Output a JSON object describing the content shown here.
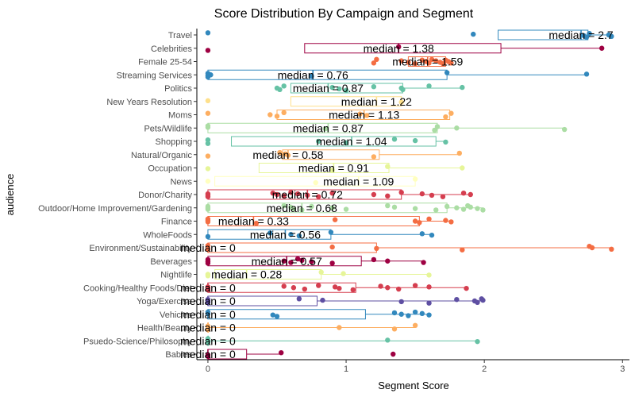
{
  "chart_data": {
    "type": "box",
    "title": "Score Distribution By Campaign and Segment",
    "xlabel": "Segment Score",
    "ylabel": "audience",
    "xlim": [
      -0.08,
      3.05
    ],
    "x_ticks": [
      0,
      1,
      2,
      3
    ],
    "grid": false,
    "legend": "none",
    "median_prefix": "median = ",
    "categories": [
      {
        "name": "Travel",
        "color": "#3288bd",
        "q1": 2.1,
        "median": 2.7,
        "q3": 2.75,
        "max": 2.92,
        "points": [
          0.0,
          1.92,
          2.72,
          2.74,
          2.76,
          2.9,
          2.92
        ],
        "median_label": "2.7"
      },
      {
        "name": "Celebrities",
        "color": "#9e0142",
        "q1": 0.7,
        "median": 1.38,
        "q3": 2.12,
        "max": 2.85,
        "points": [
          0.0,
          1.38,
          2.85
        ],
        "median_label": "1.38"
      },
      {
        "name": "Female 25-54",
        "color": "#f46d43",
        "q1": 1.45,
        "median": 1.59,
        "q3": 1.72,
        "max": 1.76,
        "points": [
          1.2,
          1.22,
          1.4,
          1.45,
          1.5,
          1.55,
          1.58,
          1.6,
          1.62,
          1.65,
          1.68,
          1.7,
          1.72,
          1.74,
          1.76
        ],
        "median_label": "1.59"
      },
      {
        "name": "Streaming Services",
        "color": "#3288bd",
        "q1": 0.0,
        "median": 0.76,
        "q3": 1.73,
        "max": 2.74,
        "points": [
          0.0,
          0.0,
          0.0,
          0.02,
          0.75,
          1.73,
          2.74
        ],
        "median_label": "0.76"
      },
      {
        "name": "Politics",
        "color": "#66c2a5",
        "q1": 0.6,
        "median": 0.87,
        "q3": 1.41,
        "max": 1.84,
        "points": [
          0.5,
          0.52,
          0.55,
          0.9,
          0.95,
          1.0,
          1.2,
          1.4,
          1.41,
          1.6,
          1.84
        ],
        "median_label": "0.87"
      },
      {
        "name": "New Years Resolution",
        "color": "#fee08b",
        "q1": 0.6,
        "median": 1.22,
        "q3": 1.4,
        "max": 1.4,
        "points": [
          0.0,
          1.4
        ],
        "median_label": "1.22"
      },
      {
        "name": "Moms",
        "color": "#fdae61",
        "q1": 0.5,
        "median": 1.13,
        "q3": 1.75,
        "max": 1.76,
        "points": [
          0.0,
          0.45,
          0.5,
          0.55,
          1.1,
          1.15,
          1.72,
          1.76
        ],
        "median_label": "1.13"
      },
      {
        "name": "Pets/Wildlife",
        "color": "#abdda4",
        "q1": 0.0,
        "median": 0.87,
        "q3": 1.66,
        "max": 2.58,
        "points": [
          0.0,
          0.0,
          0.85,
          1.64,
          1.66,
          1.8,
          2.58
        ],
        "median_label": "0.87"
      },
      {
        "name": "Shopping",
        "color": "#66c2a5",
        "q1": 0.17,
        "median": 1.04,
        "q3": 1.65,
        "max": 1.72,
        "points": [
          0.0,
          0.0,
          0.8,
          1.0,
          1.35,
          1.5,
          1.72
        ],
        "median_label": "1.04"
      },
      {
        "name": "Natural/Organic",
        "color": "#fdae61",
        "q1": 0.54,
        "median": 0.58,
        "q3": 1.24,
        "max": 1.82,
        "points": [
          0.0,
          0.52,
          0.56,
          0.58,
          1.2,
          1.82
        ],
        "median_label": "0.58"
      },
      {
        "name": "Occupation",
        "color": "#e6f598",
        "q1": 0.37,
        "median": 0.91,
        "q3": 1.31,
        "max": 1.84,
        "points": [
          0.0,
          0.9,
          1.3,
          1.84
        ],
        "median_label": "0.91"
      },
      {
        "name": "News",
        "color": "#ffffbf",
        "q1": 0.05,
        "median": 1.09,
        "q3": 1.5,
        "max": 1.5,
        "points": [
          0.0,
          0.78,
          1.5
        ],
        "median_label": "1.09"
      },
      {
        "name": "Donor/Charity",
        "color": "#d53e4f",
        "q1": 0.0,
        "median": 0.72,
        "q3": 1.4,
        "max": 1.9,
        "points": [
          0.0,
          0.0,
          0.0,
          0.47,
          0.5,
          0.55,
          0.6,
          0.65,
          0.72,
          0.8,
          0.9,
          1.2,
          1.3,
          1.4,
          1.55,
          1.62,
          1.7,
          1.85,
          1.9
        ],
        "median_label": "0.72"
      },
      {
        "name": "Outdoor/Home Improvement/Gardening",
        "color": "#abdda4",
        "q1": 0.0,
        "median": 0.68,
        "q3": 1.73,
        "max": 1.99,
        "points": [
          0.0,
          0.0,
          0.0,
          0.55,
          0.6,
          0.62,
          0.68,
          0.75,
          0.9,
          1.0,
          1.3,
          1.35,
          1.5,
          1.65,
          1.73,
          1.8,
          1.85,
          1.88,
          1.9,
          1.95,
          1.99
        ],
        "median_label": "0.68"
      },
      {
        "name": "Finance",
        "color": "#f46d43",
        "q1": 0.0,
        "median": 0.33,
        "q3": 1.53,
        "max": 1.76,
        "points": [
          0.0,
          0.0,
          0.0,
          0.35,
          0.92,
          1.5,
          1.53,
          1.6,
          1.72,
          1.76
        ],
        "median_label": "0.33"
      },
      {
        "name": "WholeFoods",
        "color": "#3288bd",
        "q1": 0.0,
        "median": 0.56,
        "q3": 0.89,
        "max": 1.62,
        "points": [
          0.0,
          0.45,
          0.6,
          0.66,
          0.89,
          1.55,
          1.62
        ],
        "median_label": "0.56"
      },
      {
        "name": "Environment/Sustainability",
        "color": "#f46d43",
        "q1": 0.0,
        "median": 0.0,
        "q3": 1.22,
        "max": 2.92,
        "points": [
          0.0,
          0.0,
          0.9,
          1.22,
          1.84,
          2.76,
          2.78,
          2.92
        ],
        "median_label": "0"
      },
      {
        "name": "Beverages",
        "color": "#9e0142",
        "q1": 0.0,
        "median": 0.57,
        "q3": 1.11,
        "max": 1.56,
        "points": [
          0.0,
          0.0,
          0.0,
          0.55,
          0.6,
          0.65,
          0.68,
          0.75,
          0.9,
          1.2,
          1.3,
          1.56
        ],
        "median_label": "0.57"
      },
      {
        "name": "Nightlife",
        "color": "#e6f598",
        "q1": 0.05,
        "median": 0.28,
        "q3": 0.82,
        "max": 1.6,
        "points": [
          0.0,
          0.0,
          0.82,
          0.98,
          1.6
        ],
        "median_label": "0.28"
      },
      {
        "name": "Cooking/Healthy Foods/Diet",
        "color": "#d53e4f",
        "q1": 0.0,
        "median": 0.0,
        "q3": 1.07,
        "max": 1.87,
        "points": [
          0.0,
          0.0,
          0.0,
          0.55,
          0.62,
          0.7,
          0.8,
          0.92,
          0.95,
          1.05,
          1.25,
          1.3,
          1.38,
          1.5,
          1.6,
          1.87
        ],
        "median_label": "0"
      },
      {
        "name": "Yoga/Exercise",
        "color": "#5e4fa2",
        "q1": 0.0,
        "median": 0.0,
        "q3": 0.79,
        "max": 1.99,
        "points": [
          0.0,
          0.0,
          0.0,
          0.66,
          0.83,
          1.4,
          1.6,
          1.8,
          1.93,
          1.95,
          1.98,
          1.99
        ],
        "median_label": "0"
      },
      {
        "name": "Vehicles",
        "color": "#3288bd",
        "q1": 0.0,
        "median": 0.0,
        "q3": 1.14,
        "max": 1.6,
        "points": [
          0.0,
          0.0,
          0.47,
          0.5,
          1.35,
          1.4,
          1.45,
          1.5,
          1.55,
          1.6
        ],
        "median_label": "0"
      },
      {
        "name": "Health/Beauty",
        "color": "#fdae61",
        "q1": 0.0,
        "median": 0.0,
        "q3": 0.0,
        "max": 1.5,
        "points": [
          0.0,
          0.0,
          0.95,
          1.35,
          1.5
        ],
        "median_label": "0"
      },
      {
        "name": "Psuedo-Science/Philosophy",
        "color": "#66c2a5",
        "q1": 0.0,
        "median": 0.0,
        "q3": 0.0,
        "max": 1.95,
        "points": [
          0.0,
          0.0,
          1.3,
          1.95
        ],
        "median_label": "0"
      },
      {
        "name": "Babies",
        "color": "#9e0142",
        "q1": 0.0,
        "median": 0.0,
        "q3": 0.28,
        "max": 0.53,
        "points": [
          0.0,
          0.0,
          0.53,
          1.34
        ],
        "median_label": "0"
      }
    ]
  }
}
